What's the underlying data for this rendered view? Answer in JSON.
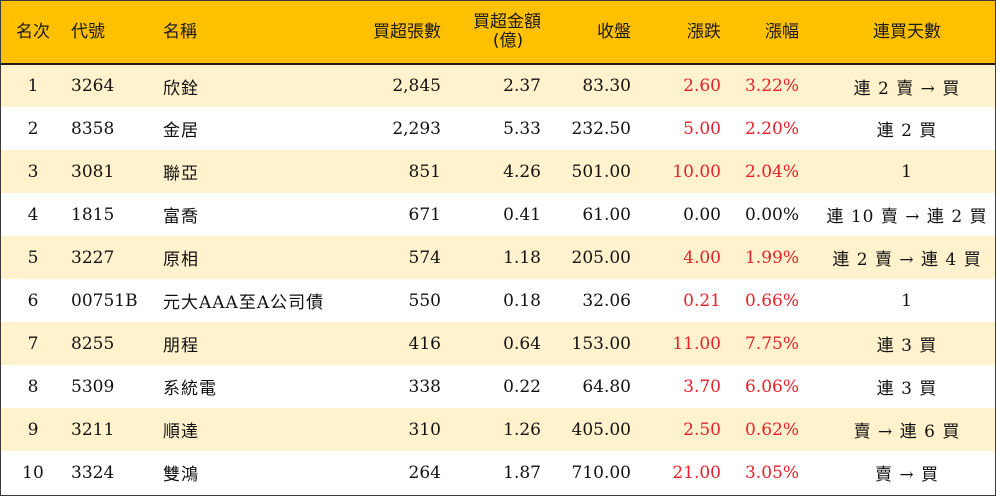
{
  "colors": {
    "header_bg": "#ffc000",
    "row_alt_bg": "#fff2cc",
    "row_bg": "#ffffff",
    "up": "#e8212b",
    "flat": "#111111"
  },
  "header": {
    "rank": "名次",
    "code": "代號",
    "name": "名稱",
    "lots": "買超張數",
    "amount_line1": "買超金額",
    "amount_line2": "(億)",
    "close": "收盤",
    "change": "漲跌",
    "pct": "漲幅",
    "days": "連買天數"
  },
  "rows": [
    {
      "rank": "1",
      "code": "3264",
      "name": "欣銓",
      "lots": "2,845",
      "amount": "2.37",
      "close": "83.30",
      "change": "2.60",
      "pct": "3.22%",
      "days": "連 2 賣 → 買",
      "trend": "up"
    },
    {
      "rank": "2",
      "code": "8358",
      "name": "金居",
      "lots": "2,293",
      "amount": "5.33",
      "close": "232.50",
      "change": "5.00",
      "pct": "2.20%",
      "days": "連 2 買",
      "trend": "up"
    },
    {
      "rank": "3",
      "code": "3081",
      "name": "聯亞",
      "lots": "851",
      "amount": "4.26",
      "close": "501.00",
      "change": "10.00",
      "pct": "2.04%",
      "days": "1",
      "trend": "up"
    },
    {
      "rank": "4",
      "code": "1815",
      "name": "富喬",
      "lots": "671",
      "amount": "0.41",
      "close": "61.00",
      "change": "0.00",
      "pct": "0.00%",
      "days": "連 10 賣 → 連 2 買",
      "trend": "flat"
    },
    {
      "rank": "5",
      "code": "3227",
      "name": "原相",
      "lots": "574",
      "amount": "1.18",
      "close": "205.00",
      "change": "4.00",
      "pct": "1.99%",
      "days": "連 2 賣 → 連 4 買",
      "trend": "up"
    },
    {
      "rank": "6",
      "code": "00751B",
      "name": "元大AAA至A公司債",
      "lots": "550",
      "amount": "0.18",
      "close": "32.06",
      "change": "0.21",
      "pct": "0.66%",
      "days": "1",
      "trend": "up"
    },
    {
      "rank": "7",
      "code": "8255",
      "name": "朋程",
      "lots": "416",
      "amount": "0.64",
      "close": "153.00",
      "change": "11.00",
      "pct": "7.75%",
      "days": "連 3 買",
      "trend": "up"
    },
    {
      "rank": "8",
      "code": "5309",
      "name": "系統電",
      "lots": "338",
      "amount": "0.22",
      "close": "64.80",
      "change": "3.70",
      "pct": "6.06%",
      "days": "連 3 買",
      "trend": "up"
    },
    {
      "rank": "9",
      "code": "3211",
      "name": "順達",
      "lots": "310",
      "amount": "1.26",
      "close": "405.00",
      "change": "2.50",
      "pct": "0.62%",
      "days": "賣 → 連 6 買",
      "trend": "up"
    },
    {
      "rank": "10",
      "code": "3324",
      "name": "雙鴻",
      "lots": "264",
      "amount": "1.87",
      "close": "710.00",
      "change": "21.00",
      "pct": "3.05%",
      "days": "賣 → 買",
      "trend": "up"
    }
  ]
}
